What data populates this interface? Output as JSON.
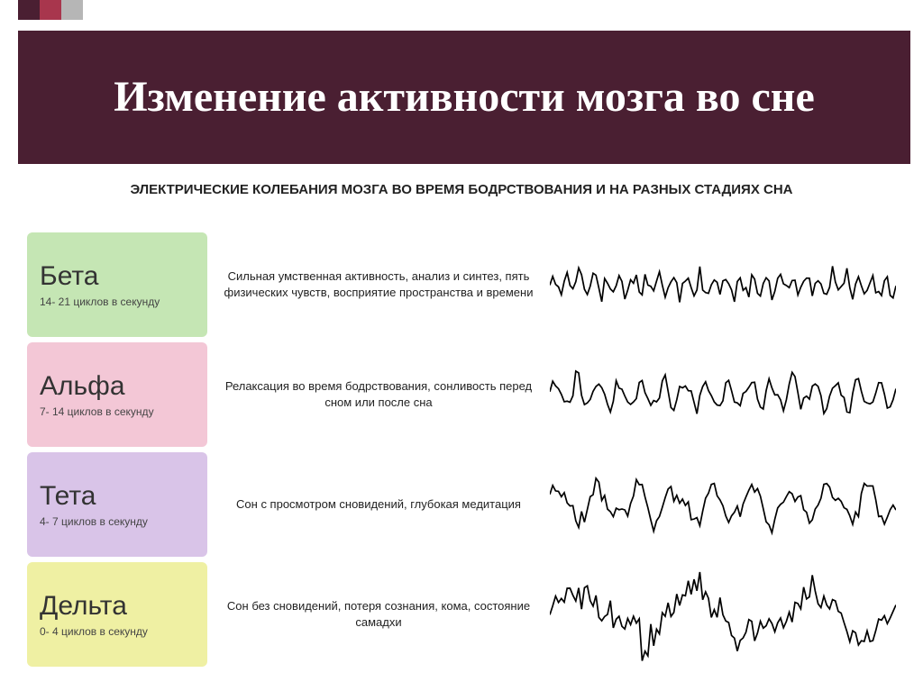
{
  "decor_colors": [
    "#4a1f32",
    "#a8364d",
    "#b6b6b6"
  ],
  "banner_bg": "#4a1f32",
  "title": "Изменение активности мозга во сне",
  "subtitle": "ЭЛЕКТРИЧЕСКИЕ КОЛЕБАНИЯ МОЗГА ВО ВРЕМЯ БОДРСТВОВАНИЯ И НА РАЗНЫХ СТАДИЯХ СНА",
  "waves": [
    {
      "name": "Бета",
      "freq": "14- 21 циклов в секунду",
      "desc": "Сильная умственная активность, анализ и синтез, пять физических чувств, восприятие пространства и времени",
      "label_bg": "#c5e6b4",
      "amplitude": 20,
      "frequency": 26,
      "irregularity": 0.55
    },
    {
      "name": "Альфа",
      "freq": "7- 14 циклов в секунду",
      "desc": "Релаксация во время бодрствования, сонливость перед сном или после сна",
      "label_bg": "#f3c7d6",
      "amplitude": 24,
      "frequency": 16,
      "irregularity": 0.35
    },
    {
      "name": "Тета",
      "freq": "4- 7 циклов в секунду",
      "desc": "Сон с просмотром сновидений, глубокая медитация",
      "label_bg": "#d9c4e8",
      "amplitude": 30,
      "frequency": 9,
      "irregularity": 0.45
    },
    {
      "name": "Дельта",
      "freq": "0- 4 циклов в секунду",
      "desc": "Сон без сновидений, потеря сознания, кома, состояние самадхи",
      "label_bg": "#eff0a3",
      "amplitude": 40,
      "frequency": 3,
      "irregularity": 0.6
    }
  ]
}
